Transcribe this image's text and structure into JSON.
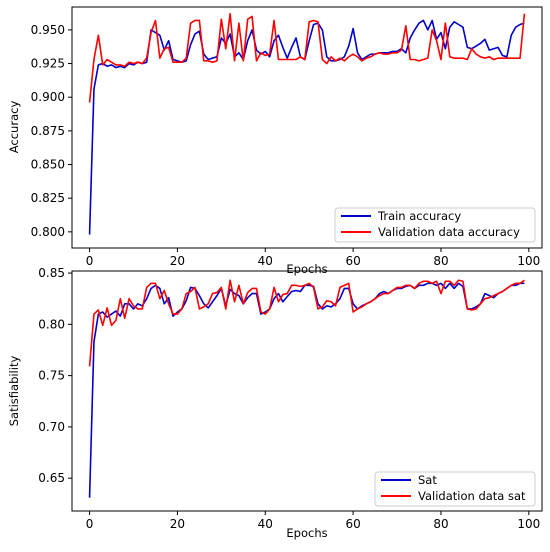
{
  "chart_data": [
    {
      "type": "line",
      "xlabel": "Epochs",
      "ylabel": "Accuracy",
      "xlim": [
        -4,
        103
      ],
      "ylim": [
        0.788,
        0.967
      ],
      "xticks": [
        0,
        20,
        40,
        60,
        80,
        100
      ],
      "xtick_labels": [
        "0",
        "20",
        "40",
        "60",
        "80",
        "100"
      ],
      "yticks": [
        0.8,
        0.825,
        0.85,
        0.875,
        0.9,
        0.925,
        0.95
      ],
      "ytick_labels": [
        "0.800",
        "0.825",
        "0.850",
        "0.875",
        "0.900",
        "0.925",
        "0.950"
      ],
      "legend_position": "lower-right",
      "grid": false,
      "x": [
        0,
        1,
        2,
        3,
        4,
        5,
        6,
        7,
        8,
        9,
        10,
        11,
        12,
        13,
        14,
        15,
        16,
        17,
        18,
        19,
        20,
        21,
        22,
        23,
        24,
        25,
        26,
        27,
        28,
        29,
        30,
        31,
        32,
        33,
        34,
        35,
        36,
        37,
        38,
        39,
        40,
        41,
        42,
        43,
        44,
        45,
        46,
        47,
        48,
        49,
        50,
        51,
        52,
        53,
        54,
        55,
        56,
        57,
        58,
        59,
        60,
        61,
        62,
        63,
        64,
        65,
        66,
        67,
        68,
        69,
        70,
        71,
        72,
        73,
        74,
        75,
        76,
        77,
        78,
        79,
        80,
        81,
        82,
        83,
        84,
        85,
        86,
        87,
        88,
        89,
        90,
        91,
        92,
        93,
        94,
        95,
        96,
        97,
        98,
        99
      ],
      "series": [
        {
          "name": "Train accuracy",
          "color": "#0000cc",
          "values": [
            0.798,
            0.906,
            0.924,
            0.925,
            0.923,
            0.924,
            0.922,
            0.923,
            0.922,
            0.925,
            0.924,
            0.926,
            0.925,
            0.926,
            0.95,
            0.948,
            0.946,
            0.935,
            0.942,
            0.928,
            0.927,
            0.926,
            0.927,
            0.939,
            0.947,
            0.949,
            0.932,
            0.928,
            0.929,
            0.93,
            0.944,
            0.94,
            0.947,
            0.93,
            0.933,
            0.928,
            0.942,
            0.95,
            0.935,
            0.932,
            0.934,
            0.93,
            0.942,
            0.946,
            0.937,
            0.929,
            0.937,
            0.944,
            0.93,
            0.928,
            0.942,
            0.954,
            0.955,
            0.95,
            0.93,
            0.927,
            0.927,
            0.928,
            0.93,
            0.938,
            0.951,
            0.933,
            0.928,
            0.93,
            0.932,
            0.932,
            0.933,
            0.933,
            0.933,
            0.934,
            0.934,
            0.936,
            0.933,
            0.944,
            0.95,
            0.955,
            0.957,
            0.95,
            0.957,
            0.943,
            0.948,
            0.936,
            0.952,
            0.956,
            0.954,
            0.952,
            0.937,
            0.936,
            0.938,
            0.94,
            0.943,
            0.935,
            0.936,
            0.937,
            0.931,
            0.93,
            0.946,
            0.952,
            0.954,
            0.955
          ]
        },
        {
          "name": "Validation data accuracy",
          "color": "#ff0000",
          "values": [
            0.896,
            0.928,
            0.946,
            0.924,
            0.928,
            0.926,
            0.924,
            0.924,
            0.923,
            0.926,
            0.925,
            0.926,
            0.925,
            0.929,
            0.948,
            0.957,
            0.929,
            0.936,
            0.937,
            0.926,
            0.926,
            0.926,
            0.929,
            0.955,
            0.957,
            0.957,
            0.927,
            0.927,
            0.926,
            0.927,
            0.958,
            0.936,
            0.962,
            0.927,
            0.955,
            0.927,
            0.958,
            0.96,
            0.927,
            0.933,
            0.931,
            0.932,
            0.957,
            0.928,
            0.928,
            0.928,
            0.928,
            0.928,
            0.93,
            0.928,
            0.956,
            0.957,
            0.956,
            0.928,
            0.925,
            0.93,
            0.927,
            0.929,
            0.927,
            0.93,
            0.932,
            0.93,
            0.927,
            0.929,
            0.93,
            0.932,
            0.933,
            0.932,
            0.932,
            0.933,
            0.933,
            0.935,
            0.953,
            0.928,
            0.928,
            0.927,
            0.928,
            0.929,
            0.95,
            0.942,
            0.928,
            0.955,
            0.93,
            0.929,
            0.929,
            0.929,
            0.928,
            0.936,
            0.932,
            0.93,
            0.929,
            0.93,
            0.928,
            0.929,
            0.929,
            0.929,
            0.929,
            0.929,
            0.929,
            0.962
          ]
        }
      ]
    },
    {
      "type": "line",
      "xlabel": "Epochs",
      "ylabel": "Satisfiability",
      "xlim": [
        -4,
        103
      ],
      "ylim": [
        0.618,
        0.852
      ],
      "xticks": [
        0,
        20,
        40,
        60,
        80,
        100
      ],
      "xtick_labels": [
        "0",
        "20",
        "40",
        "60",
        "80",
        "100"
      ],
      "yticks": [
        0.65,
        0.7,
        0.75,
        0.8,
        0.85
      ],
      "ytick_labels": [
        "0.65",
        "0.70",
        "0.75",
        "0.80",
        "0.85"
      ],
      "legend_position": "lower-right",
      "grid": false,
      "x": [
        0,
        1,
        2,
        3,
        4,
        5,
        6,
        7,
        8,
        9,
        10,
        11,
        12,
        13,
        14,
        15,
        16,
        17,
        18,
        19,
        20,
        21,
        22,
        23,
        24,
        25,
        26,
        27,
        28,
        29,
        30,
        31,
        32,
        33,
        34,
        35,
        36,
        37,
        38,
        39,
        40,
        41,
        42,
        43,
        44,
        45,
        46,
        47,
        48,
        49,
        50,
        51,
        52,
        53,
        54,
        55,
        56,
        57,
        58,
        59,
        60,
        61,
        62,
        63,
        64,
        65,
        66,
        67,
        68,
        69,
        70,
        71,
        72,
        73,
        74,
        75,
        76,
        77,
        78,
        79,
        80,
        81,
        82,
        83,
        84,
        85,
        86,
        87,
        88,
        89,
        90,
        91,
        92,
        93,
        94,
        95,
        96,
        97,
        98,
        99
      ],
      "series": [
        {
          "name": "Sat",
          "color": "#0000cc",
          "values": [
            0.631,
            0.783,
            0.81,
            0.812,
            0.807,
            0.81,
            0.813,
            0.808,
            0.82,
            0.82,
            0.815,
            0.82,
            0.818,
            0.825,
            0.835,
            0.838,
            0.835,
            0.82,
            0.826,
            0.808,
            0.812,
            0.815,
            0.823,
            0.836,
            0.835,
            0.828,
            0.82,
            0.816,
            0.822,
            0.828,
            0.835,
            0.818,
            0.834,
            0.83,
            0.828,
            0.82,
            0.826,
            0.83,
            0.83,
            0.81,
            0.812,
            0.815,
            0.825,
            0.83,
            0.822,
            0.827,
            0.832,
            0.833,
            0.832,
            0.838,
            0.838,
            0.837,
            0.82,
            0.815,
            0.818,
            0.817,
            0.82,
            0.825,
            0.835,
            0.835,
            0.82,
            0.815,
            0.818,
            0.82,
            0.822,
            0.825,
            0.83,
            0.832,
            0.83,
            0.833,
            0.835,
            0.835,
            0.837,
            0.838,
            0.835,
            0.838,
            0.838,
            0.84,
            0.84,
            0.838,
            0.84,
            0.835,
            0.84,
            0.835,
            0.84,
            0.837,
            0.815,
            0.815,
            0.817,
            0.82,
            0.83,
            0.828,
            0.826,
            0.83,
            0.832,
            0.835,
            0.838,
            0.838,
            0.84,
            0.84
          ]
        },
        {
          "name": "Validation data sat",
          "color": "#ff0000",
          "values": [
            0.759,
            0.81,
            0.814,
            0.799,
            0.816,
            0.799,
            0.804,
            0.825,
            0.806,
            0.825,
            0.818,
            0.815,
            0.815,
            0.836,
            0.84,
            0.84,
            0.825,
            0.833,
            0.82,
            0.81,
            0.81,
            0.815,
            0.83,
            0.832,
            0.836,
            0.815,
            0.817,
            0.82,
            0.83,
            0.831,
            0.836,
            0.815,
            0.843,
            0.822,
            0.838,
            0.82,
            0.831,
            0.835,
            0.835,
            0.812,
            0.81,
            0.815,
            0.836,
            0.822,
            0.829,
            0.83,
            0.838,
            0.838,
            0.837,
            0.838,
            0.84,
            0.836,
            0.815,
            0.817,
            0.823,
            0.822,
            0.818,
            0.836,
            0.838,
            0.84,
            0.812,
            0.815,
            0.817,
            0.82,
            0.822,
            0.825,
            0.828,
            0.83,
            0.83,
            0.833,
            0.836,
            0.836,
            0.838,
            0.838,
            0.835,
            0.84,
            0.842,
            0.842,
            0.84,
            0.842,
            0.83,
            0.842,
            0.842,
            0.838,
            0.843,
            0.842,
            0.815,
            0.814,
            0.815,
            0.82,
            0.825,
            0.826,
            0.828,
            0.83,
            0.832,
            0.835,
            0.838,
            0.84,
            0.84,
            0.843
          ]
        }
      ]
    }
  ]
}
